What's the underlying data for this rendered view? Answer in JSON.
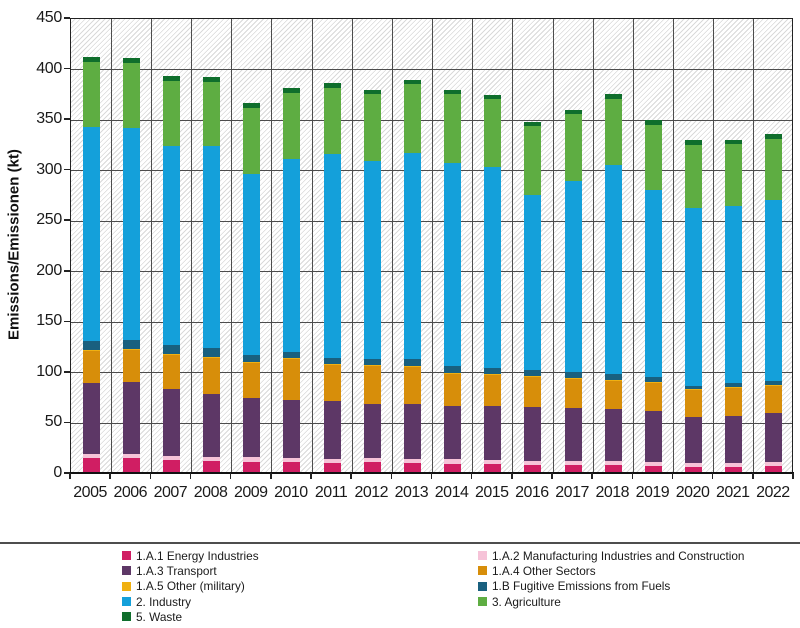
{
  "axis": {
    "y_title": "Emissions/Emissionen (kt)"
  },
  "chart_data": {
    "type": "bar",
    "stacked": true,
    "title": "",
    "xlabel": "",
    "ylabel": "Emissions/Emissionen (kt)",
    "ylim": [
      0,
      450
    ],
    "y_tick_step": 50,
    "grid": true,
    "background_hatch": true,
    "legend_position": "bottom",
    "categories": [
      "2005",
      "2006",
      "2007",
      "2008",
      "2009",
      "2010",
      "2011",
      "2012",
      "2013",
      "2014",
      "2015",
      "2016",
      "2017",
      "2018",
      "2019",
      "2020",
      "2021",
      "2022"
    ],
    "series": [
      {
        "name": "1.A.1 Energy Industries",
        "color": "#d01e63",
        "values": [
          14,
          14,
          12,
          11,
          10,
          10,
          9,
          10,
          9,
          8,
          8,
          7,
          7,
          7,
          6,
          5,
          5,
          6
        ]
      },
      {
        "name": "1.A.2 Manufacturing Industries and Construction",
        "color": "#f6c3d8",
        "values": [
          4,
          4,
          4,
          4,
          5,
          4,
          4,
          4,
          4,
          5,
          4,
          4,
          4,
          4,
          4,
          4,
          4,
          4
        ]
      },
      {
        "name": "1.A.3 Transport",
        "color": "#5d3766",
        "values": [
          70,
          71,
          66,
          62,
          58,
          57,
          57,
          53,
          54,
          52,
          53,
          53,
          52,
          51,
          50,
          45,
          46,
          48
        ]
      },
      {
        "name": "1.A.4 Other Sectors",
        "color": "#d78e0a",
        "values": [
          32,
          32,
          34,
          36,
          35,
          41,
          36,
          38,
          37,
          32,
          31,
          30,
          29,
          28,
          28,
          27,
          28,
          27
        ]
      },
      {
        "name": "1.A.5 Other (military)",
        "color": "#f0b011",
        "values": [
          1,
          1,
          1,
          1,
          1,
          1,
          1,
          1,
          1,
          1,
          1,
          1,
          1,
          1,
          1,
          1,
          1,
          1
        ]
      },
      {
        "name": "1.B Fugitive Emissions from Fuels",
        "color": "#19607f",
        "values": [
          9,
          9,
          9,
          9,
          7,
          6,
          6,
          6,
          7,
          7,
          6,
          6,
          6,
          6,
          5,
          3,
          4,
          4
        ]
      },
      {
        "name": "2. Industry",
        "color": "#14a0da",
        "values": [
          211,
          209,
          196,
          199,
          179,
          191,
          202,
          196,
          204,
          201,
          199,
          173,
          189,
          207,
          185,
          176,
          175,
          179
        ]
      },
      {
        "name": "3. Agriculture",
        "color": "#5ead42",
        "values": [
          65,
          65,
          65,
          64,
          65,
          65,
          65,
          66,
          68,
          68,
          67,
          68,
          66,
          65,
          64,
          62,
          61,
          60
        ]
      },
      {
        "name": "5. Waste",
        "color": "#0f6e2c",
        "values": [
          5,
          5,
          5,
          5,
          5,
          5,
          5,
          4,
          4,
          4,
          4,
          4,
          4,
          5,
          5,
          5,
          4,
          5
        ]
      }
    ],
    "totals": [
      411,
      410,
      392,
      391,
      365,
      380,
      385,
      378,
      388,
      378,
      373,
      346,
      358,
      374,
      348,
      328,
      328,
      334
    ]
  },
  "legend": {
    "columns": [
      [
        "1.A.1 Energy Industries",
        "1.A.3 Transport",
        "1.A.5 Other (military)",
        "2. Industry",
        "5. Waste"
      ],
      [
        "1.A.2 Manufacturing Industries and Construction",
        "1.A.4 Other Sectors",
        "1.B Fugitive Emissions from Fuels",
        "3. Agriculture"
      ]
    ]
  }
}
